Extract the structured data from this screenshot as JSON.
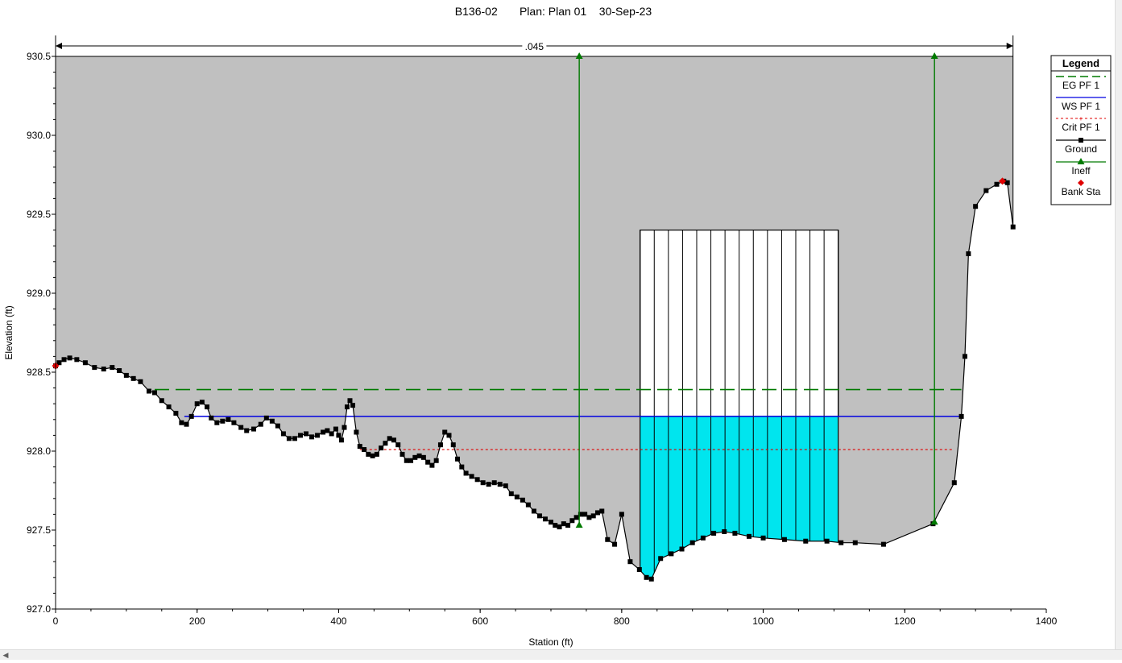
{
  "chart_data": {
    "type": "line",
    "title": "B136-02       Plan: Plan 01    30-Sep-23",
    "xlabel": "Station (ft)",
    "ylabel": "Elevation (ft)",
    "xlim": [
      0,
      1400
    ],
    "ylim": [
      927.0,
      930.5
    ],
    "xticks": [
      "0",
      "200",
      "400",
      "600",
      "800",
      "1000",
      "1200",
      "1400"
    ],
    "yticks": [
      "927.0",
      "927.5",
      "928.0",
      "928.5",
      "929.0",
      "929.5",
      "930.0",
      "930.5"
    ],
    "manning_n": ".045",
    "manning_extent": [
      0,
      1353
    ],
    "legend": {
      "title": "Legend",
      "placement": "right",
      "entries": [
        "EG PF 1",
        "WS PF 1",
        "Crit PF 1",
        "Ground",
        "Ineff",
        "Bank Sta"
      ]
    },
    "colors": {
      "eg": "#007a00",
      "ws": "#0000e0",
      "crit": "#e00000",
      "ground": "#000000",
      "ineff": "#007a00",
      "bank": "#e00000",
      "fill_ground": "#c0c0c0",
      "water": "#00e5ee",
      "structure": "#ffffff"
    },
    "series": [
      {
        "name": "Ground",
        "x": [
          0,
          5,
          12,
          20,
          30,
          42,
          55,
          68,
          80,
          90,
          100,
          110,
          120,
          132,
          140,
          150,
          160,
          170,
          178,
          185,
          192,
          200,
          207,
          214,
          220,
          228,
          236,
          244,
          252,
          262,
          270,
          280,
          290,
          298,
          306,
          314,
          322,
          330,
          338,
          346,
          354,
          362,
          370,
          378,
          384,
          390,
          396,
          400,
          404,
          408,
          412,
          416,
          420,
          425,
          430,
          436,
          442,
          448,
          454,
          460,
          466,
          472,
          478,
          484,
          490,
          496,
          502,
          508,
          514,
          520,
          526,
          532,
          538,
          544,
          550,
          556,
          562,
          568,
          574,
          580,
          588,
          596,
          604,
          612,
          620,
          628,
          636,
          644,
          652,
          660,
          668,
          676,
          684,
          692,
          700,
          706,
          712,
          718,
          724,
          730,
          736,
          742,
          748,
          754,
          760,
          766,
          772,
          780,
          790,
          800,
          812,
          825,
          835,
          842,
          855,
          870,
          885,
          900,
          915,
          930,
          945,
          960,
          980,
          1000,
          1030,
          1060,
          1090,
          1110,
          1130,
          1170,
          1240,
          1270,
          1280,
          1285,
          1290,
          1300,
          1315,
          1330,
          1340,
          1345,
          1353
        ],
        "y": [
          928.54,
          928.56,
          928.58,
          928.59,
          928.58,
          928.56,
          928.53,
          928.52,
          928.53,
          928.51,
          928.48,
          928.46,
          928.44,
          928.38,
          928.37,
          928.32,
          928.28,
          928.24,
          928.18,
          928.17,
          928.22,
          928.3,
          928.31,
          928.28,
          928.21,
          928.18,
          928.19,
          928.2,
          928.18,
          928.15,
          928.13,
          928.14,
          928.17,
          928.21,
          928.19,
          928.16,
          928.11,
          928.08,
          928.08,
          928.1,
          928.11,
          928.09,
          928.1,
          928.12,
          928.13,
          928.11,
          928.14,
          928.1,
          928.07,
          928.15,
          928.28,
          928.32,
          928.29,
          928.12,
          928.03,
          928.01,
          927.98,
          927.97,
          927.98,
          928.02,
          928.05,
          928.08,
          928.07,
          928.04,
          927.98,
          927.94,
          927.94,
          927.96,
          927.97,
          927.96,
          927.93,
          927.91,
          927.94,
          928.04,
          928.12,
          928.1,
          928.04,
          927.95,
          927.9,
          927.86,
          927.84,
          927.82,
          927.8,
          927.79,
          927.8,
          927.79,
          927.78,
          927.73,
          927.71,
          927.69,
          927.66,
          927.62,
          927.59,
          927.57,
          927.55,
          927.53,
          927.52,
          927.54,
          927.53,
          927.56,
          927.58,
          927.6,
          927.6,
          927.58,
          927.59,
          927.61,
          927.62,
          927.44,
          927.41,
          927.6,
          927.3,
          927.25,
          927.2,
          927.19,
          927.32,
          927.35,
          927.38,
          927.42,
          927.45,
          927.48,
          927.49,
          927.48,
          927.46,
          927.45,
          927.44,
          927.43,
          927.43,
          927.42,
          927.42,
          927.41,
          927.54,
          927.8,
          928.22,
          928.6,
          929.25,
          929.55,
          929.65,
          929.69,
          929.71,
          929.7,
          929.42
        ]
      },
      {
        "name": "EG PF 1",
        "x": [
          140,
          1280
        ],
        "y": [
          928.39,
          928.39
        ]
      },
      {
        "name": "WS PF 1",
        "x": [
          182,
          1280
        ],
        "y": [
          928.22,
          928.22
        ]
      },
      {
        "name": "Crit PF 1",
        "x": [
          430,
          1270
        ],
        "y": [
          928.01,
          928.01
        ]
      },
      {
        "name": "Ineff",
        "x": [
          740,
          740
        ],
        "y": [
          927.53,
          930.5
        ]
      },
      {
        "name": "Ineff",
        "x": [
          1242,
          1242
        ],
        "y": [
          927.55,
          930.5
        ]
      },
      {
        "name": "Bank Sta",
        "x": [
          0,
          1338
        ],
        "y": [
          928.54,
          929.71
        ]
      }
    ],
    "bridge": {
      "deck_top": 929.4,
      "low_chord": 927.42,
      "x_left": 826,
      "x_right": 1106,
      "piers": [
        846,
        866,
        886,
        906,
        926,
        946,
        966,
        986,
        1006,
        1026,
        1046,
        1066,
        1086
      ]
    }
  }
}
